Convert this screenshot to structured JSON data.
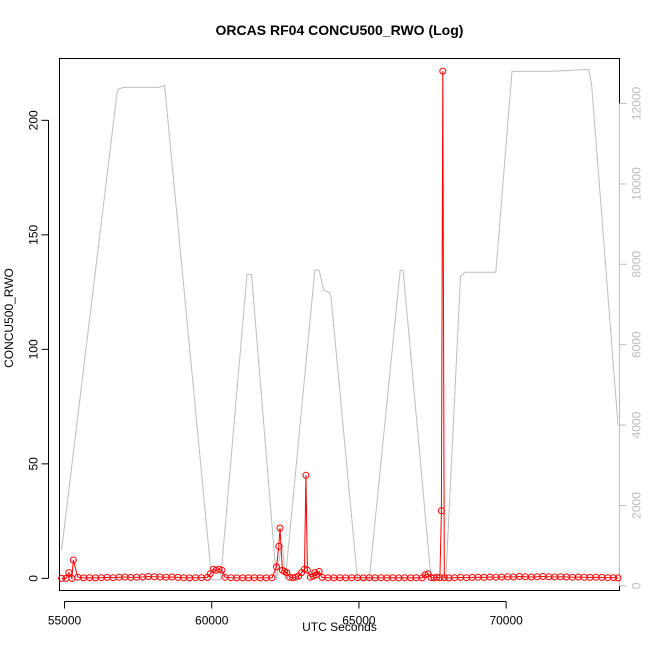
{
  "chart_data": {
    "type": "line",
    "title": "ORCAS RF04 CONCU500_RWO (Log)",
    "xlabel": "UTC Seconds",
    "ylabel": "CONCU500_RWO",
    "xlim": [
      54830,
      73850
    ],
    "ylim": [
      -5.3,
      227
    ],
    "y2lim": [
      -115,
      13120
    ],
    "x_ticks": [
      55000,
      60000,
      65000,
      70000
    ],
    "y_ticks": [
      0,
      50,
      100,
      150,
      200
    ],
    "y2_ticks": [
      0,
      2000,
      4000,
      6000,
      8000,
      10000,
      12000
    ],
    "grid": false,
    "colors": {
      "primary": "#ff0000",
      "secondary": "#bebebe"
    },
    "series": [
      {
        "role": "primary",
        "style": "points-with-lines",
        "x": [
          54900,
          55050,
          55150,
          55250,
          55300,
          55450,
          55650,
          55850,
          56050,
          56250,
          56450,
          56650,
          56850,
          57050,
          57250,
          57450,
          57650,
          57850,
          58050,
          58250,
          58450,
          58650,
          58850,
          59050,
          59250,
          59450,
          59650,
          59850,
          59950,
          60050,
          60150,
          60250,
          60350,
          60450,
          60650,
          60850,
          61050,
          61250,
          61450,
          61650,
          61850,
          62050,
          62200,
          62280,
          62320,
          62400,
          62480,
          62550,
          62650,
          62750,
          62850,
          62950,
          63050,
          63150,
          63200,
          63250,
          63350,
          63450,
          63500,
          63550,
          63650,
          63750,
          63950,
          64150,
          64350,
          64550,
          64750,
          64950,
          65150,
          65350,
          65550,
          65750,
          65950,
          66150,
          66350,
          66550,
          66750,
          66950,
          67150,
          67250,
          67350,
          67450,
          67550,
          67650,
          67750,
          67800,
          67850,
          67900,
          68050,
          68250,
          68450,
          68650,
          68850,
          69050,
          69250,
          69450,
          69650,
          69850,
          70050,
          70250,
          70450,
          70650,
          70850,
          71050,
          71250,
          71450,
          71650,
          71850,
          72050,
          72250,
          72450,
          72650,
          72850,
          73050,
          73250,
          73450,
          73650,
          73800
        ],
        "y": [
          0,
          0,
          2.5,
          0,
          8,
          0.5,
          0.2,
          0.3,
          0.2,
          0.3,
          0.4,
          0.3,
          0.5,
          0.6,
          0.4,
          0.5,
          0.6,
          0.8,
          0.7,
          0.6,
          0.5,
          0.6,
          0.4,
          0.3,
          0.2,
          0.3,
          0.3,
          0.4,
          2,
          4,
          3.5,
          4,
          3.5,
          0.5,
          0.3,
          0.2,
          0.2,
          0.2,
          0.3,
          0.2,
          0.2,
          0.3,
          5,
          14,
          22,
          3.5,
          3,
          2.5,
          0.5,
          0.3,
          0.5,
          1,
          2.5,
          4,
          45,
          3.5,
          0.5,
          1,
          2.5,
          1.5,
          3,
          0.4,
          0.3,
          0.2,
          0.3,
          0.2,
          0.3,
          0.3,
          0.2,
          0.3,
          0.2,
          0.3,
          0.2,
          0.3,
          0.2,
          0.3,
          0.2,
          0.3,
          0.2,
          1.5,
          2,
          0.3,
          0.2,
          0.5,
          0.3,
          29.5,
          221.5,
          0.3,
          0.2,
          0.3,
          0.4,
          0.3,
          0.4,
          0.5,
          0.4,
          0.6,
          0.5,
          0.6,
          0.7,
          0.6,
          0.8,
          0.7,
          0.6,
          0.7,
          0.8,
          0.7,
          0.6,
          0.7,
          0.6,
          0.5,
          0.6,
          0.5,
          0.4,
          0.5,
          0.4,
          0.3,
          0.3,
          0.2
        ]
      },
      {
        "role": "secondary",
        "style": "line",
        "x": [
          54900,
          56800,
          57000,
          58200,
          58400,
          60000,
          60300,
          61200,
          61350,
          62200,
          62300,
          62400,
          62500,
          63500,
          63650,
          63800,
          64000,
          64050,
          64950,
          65350,
          66400,
          66500,
          67450,
          67950,
          68450,
          68600,
          69600,
          69650,
          70200,
          70400,
          71500,
          72800,
          72900,
          73800
        ],
        "y": [
          900,
          12350,
          12400,
          12400,
          12450,
          150,
          150,
          7750,
          7750,
          150,
          700,
          1050,
          150,
          7850,
          7850,
          7350,
          7300,
          7200,
          150,
          150,
          7850,
          7850,
          150,
          150,
          7700,
          7800,
          7800,
          7800,
          12800,
          12800,
          12800,
          12850,
          12500,
          4000
        ]
      }
    ]
  }
}
